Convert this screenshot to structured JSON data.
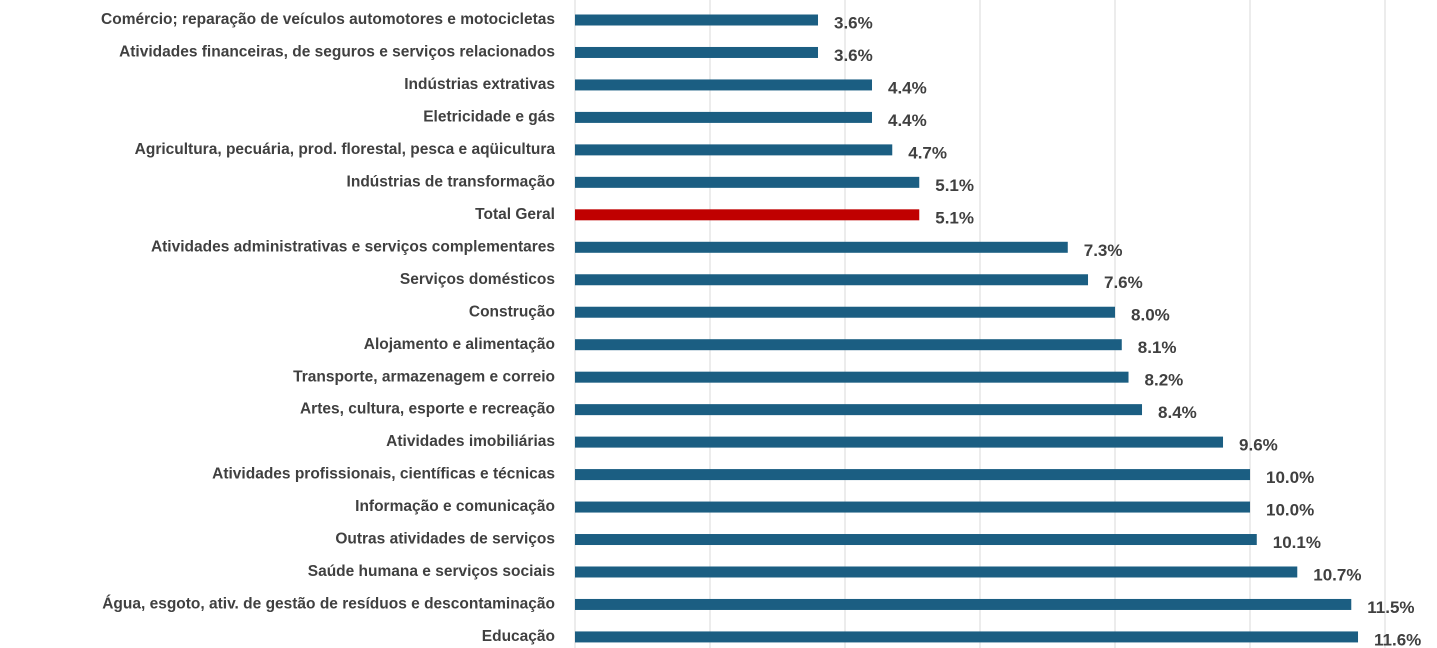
{
  "chart_data": {
    "type": "barh",
    "categories": [
      "Comércio; reparação de veículos automotores e motocicletas",
      "Atividades financeiras, de seguros e serviços relacionados",
      "Indústrias extrativas",
      "Eletricidade e gás",
      "Agricultura, pecuária, prod. florestal, pesca e aqüicultura",
      "Indústrias de transformação",
      "Total Geral",
      "Atividades administrativas e serviços complementares",
      "Serviços domésticos",
      "Construção",
      "Alojamento e alimentação",
      "Transporte, armazenagem e correio",
      "Artes, cultura, esporte e recreação",
      "Atividades imobiliárias",
      "Atividades profissionais, científicas e técnicas",
      "Informação e comunicação",
      "Outras atividades de serviços",
      "Saúde humana e serviços sociais",
      "Água, esgoto, ativ. de gestão de resíduos e descontaminação",
      "Educação"
    ],
    "values": [
      3.6,
      3.6,
      4.4,
      4.4,
      4.7,
      5.1,
      5.1,
      7.3,
      7.6,
      8.0,
      8.1,
      8.2,
      8.4,
      9.6,
      10.0,
      10.0,
      10.1,
      10.7,
      11.5,
      11.6
    ],
    "value_labels": [
      "3.6%",
      "3.6%",
      "4.4%",
      "4.4%",
      "4.7%",
      "5.1%",
      "5.1%",
      "7.3%",
      "7.6%",
      "8.0%",
      "8.1%",
      "8.2%",
      "8.4%",
      "9.6%",
      "10.0%",
      "10.0%",
      "10.1%",
      "10.7%",
      "11.5%",
      "11.6%"
    ],
    "colors": [
      "#1b5e82",
      "#1b5e82",
      "#1b5e82",
      "#1b5e82",
      "#1b5e82",
      "#1b5e82",
      "#c00000",
      "#1b5e82",
      "#1b5e82",
      "#1b5e82",
      "#1b5e82",
      "#1b5e82",
      "#1b5e82",
      "#1b5e82",
      "#1b5e82",
      "#1b5e82",
      "#1b5e82",
      "#1b5e82",
      "#1b5e82",
      "#1b5e82"
    ],
    "xlim": [
      0,
      12.77
    ],
    "xticks": [
      0,
      2,
      4,
      6,
      8,
      10,
      12
    ],
    "grid": true
  }
}
